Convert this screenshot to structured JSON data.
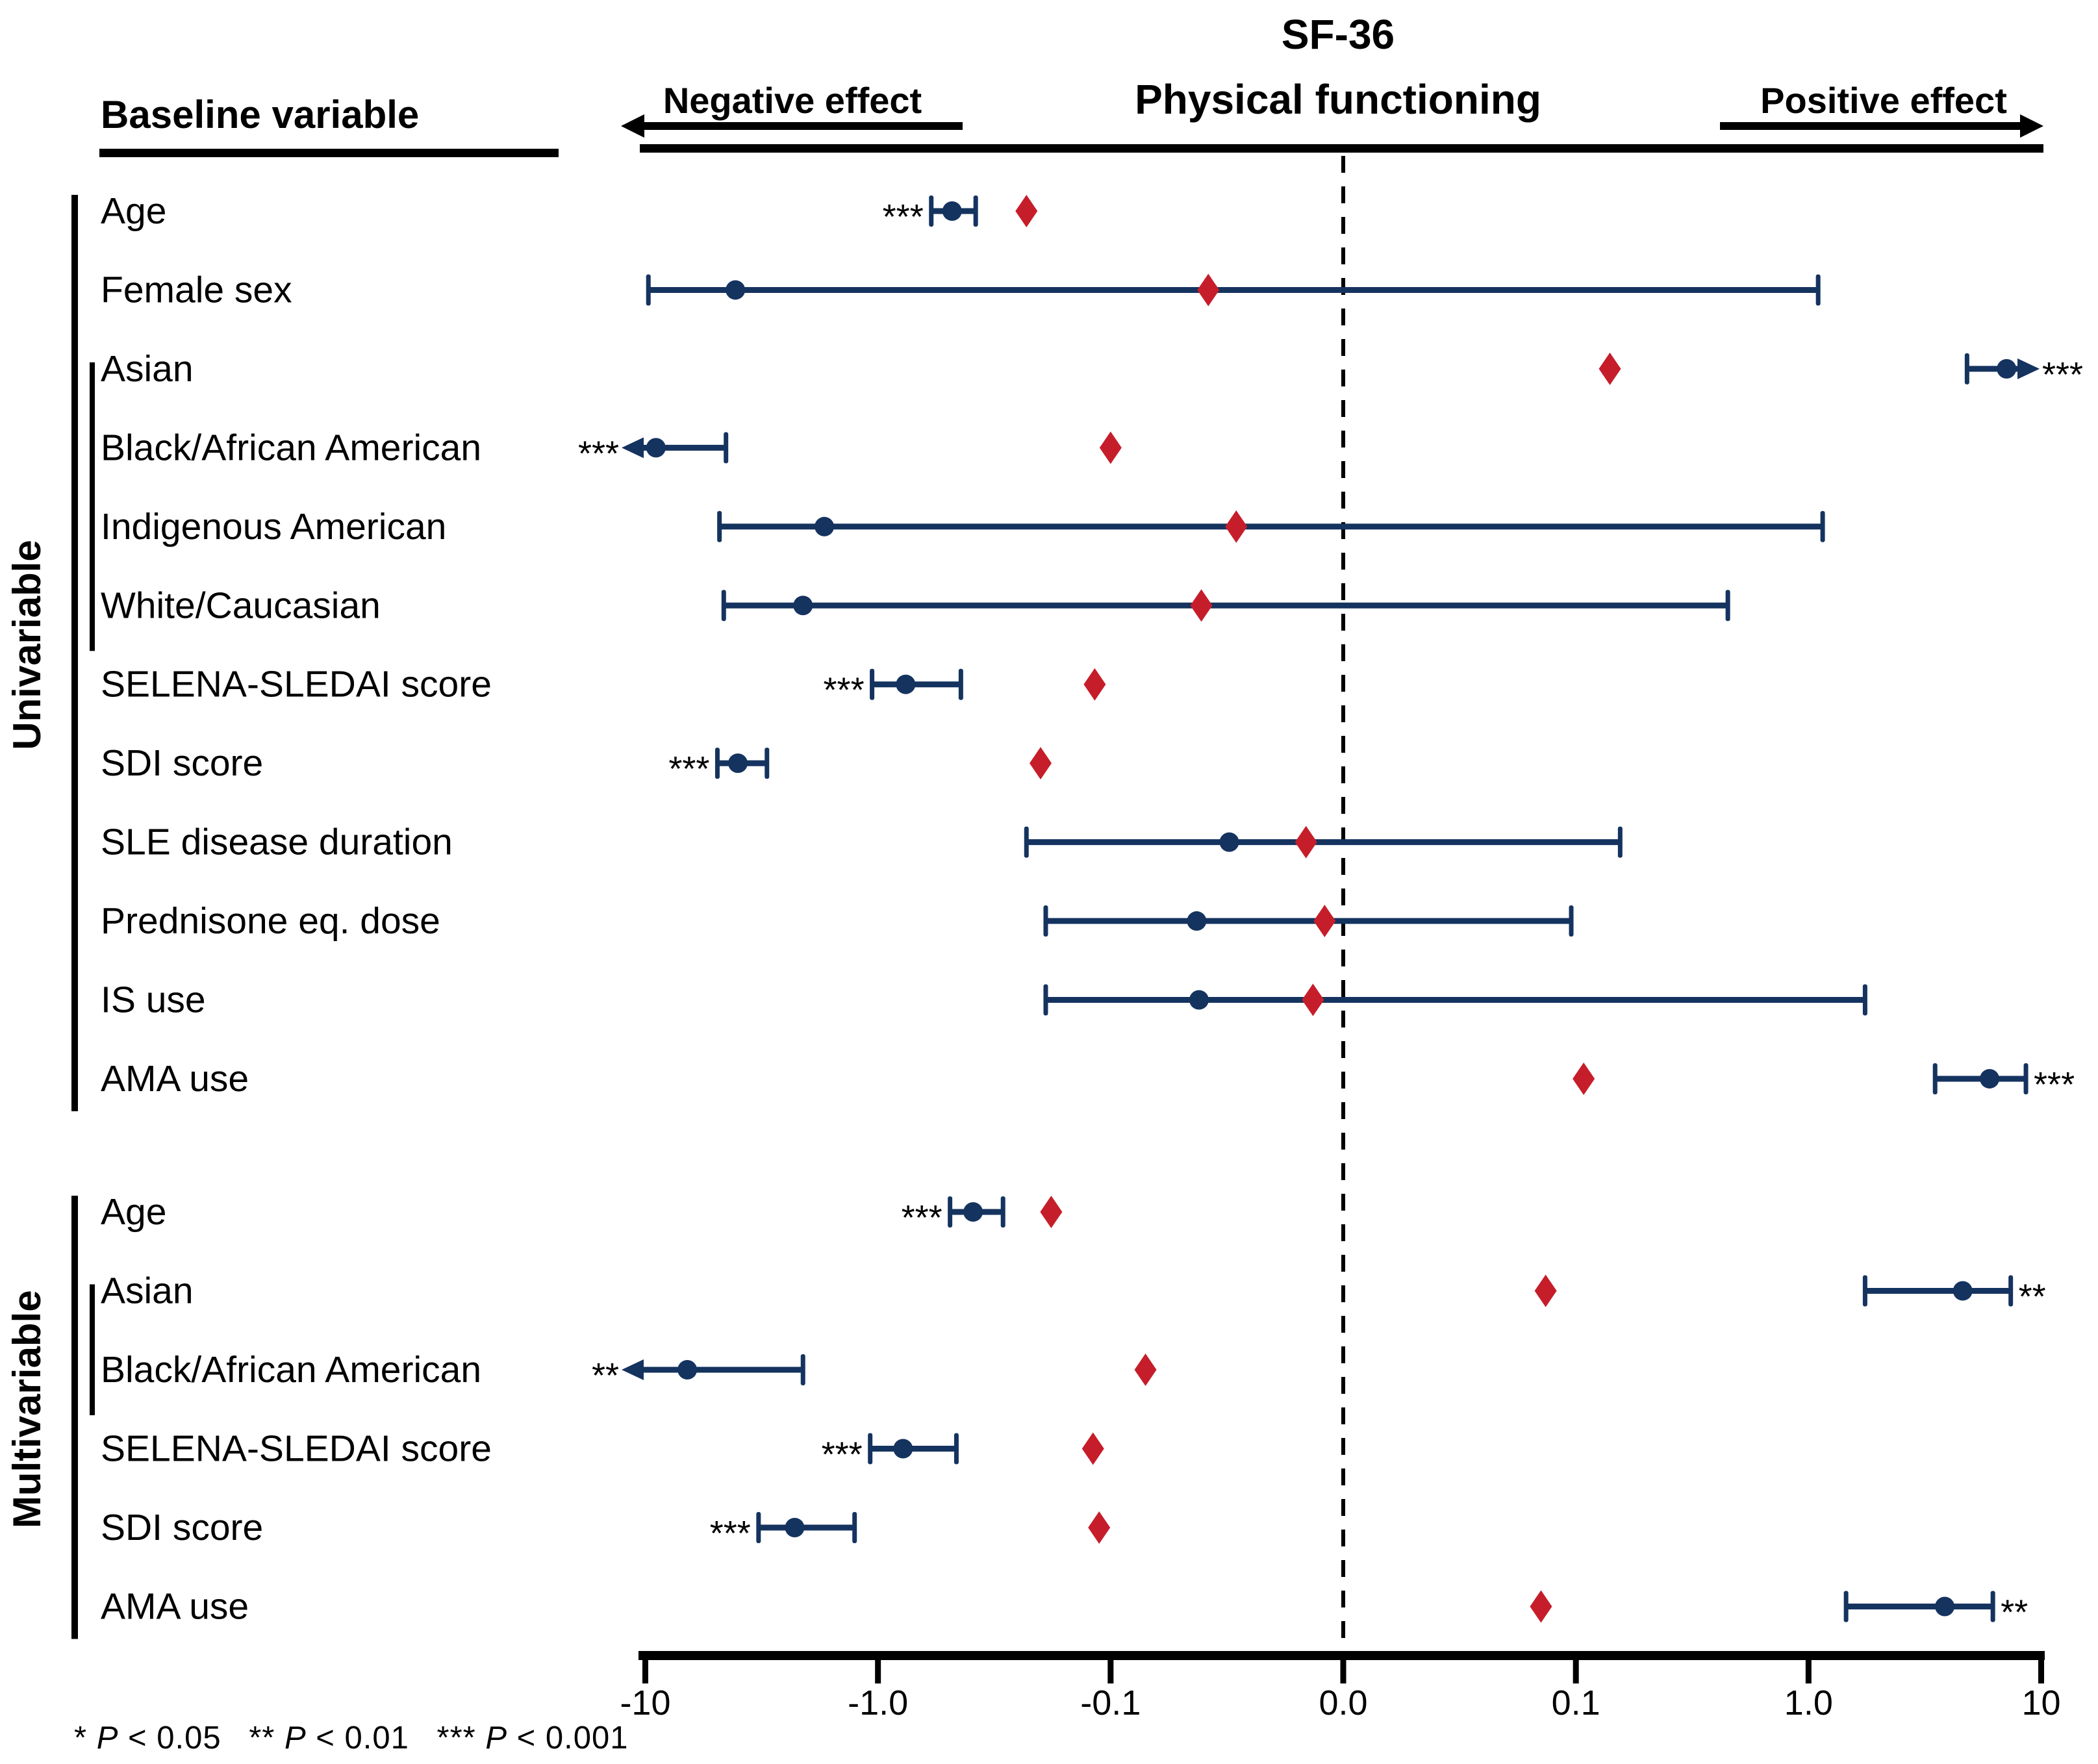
{
  "figure": {
    "title_line1": "SF-36",
    "title_line2": "Physical functioning",
    "column_header": "Baseline variable",
    "negative_label": "Negative effect",
    "positive_label": "Positive effect",
    "footnote": {
      "items": [
        {
          "sym": "*",
          "p": "P",
          "cmp": " < 0.05"
        },
        {
          "sym": "**",
          "p": "P",
          "cmp": " < 0.01"
        },
        {
          "sym": "***",
          "p": "P",
          "cmp": " < 0.001"
        }
      ]
    }
  },
  "colors": {
    "navy": "#15335F",
    "red": "#C51E2A",
    "black": "#000000"
  },
  "chart_data": {
    "type": "forest",
    "title": "SF-36 Physical functioning",
    "x_axis": {
      "scale": "symmetric log, one decade per segment, linear between -0.1 and 0.1",
      "ticks": [
        "-10",
        "-1.0",
        "-0.1",
        "0.0",
        "0.1",
        "1.0",
        "10"
      ],
      "tick_values": [
        -10,
        -1.0,
        -0.1,
        0.0,
        0.1,
        1.0,
        10
      ],
      "zero_reference_line": 0.0,
      "negative_direction_label": "Negative effect",
      "positive_direction_label": "Positive effect"
    },
    "marker_legend": {
      "dot": "point estimate with 95% CI (navy)",
      "diamond": "effect size (red)"
    },
    "sections": [
      {
        "name": "Univariable",
        "sub_bracket_row_labels": [
          "Asian",
          "Black/African American",
          "Indigenous American",
          "White/Caucasian"
        ],
        "rows": [
          {
            "label": "Age",
            "estimate": -0.48,
            "ci_low": -0.59,
            "ci_high": -0.38,
            "low_arrow": false,
            "high_arrow": false,
            "diamond": -0.23,
            "sig": "***",
            "sig_side": "left"
          },
          {
            "label": "Female sex",
            "estimate": -4.1,
            "ci_low": -9.7,
            "ci_high": 1.1,
            "low_arrow": false,
            "high_arrow": false,
            "diamond": -0.058,
            "sig": "",
            "sig_side": null
          },
          {
            "label": "Asian",
            "estimate": 7.1,
            "ci_low": 4.8,
            "ci_high": 10,
            "low_arrow": false,
            "high_arrow": true,
            "diamond": 0.14,
            "sig": "***",
            "sig_side": "right"
          },
          {
            "label": "Black/African American",
            "estimate": -9.0,
            "ci_low": -10,
            "ci_high": -4.5,
            "low_arrow": true,
            "high_arrow": false,
            "diamond": -0.1,
            "sig": "***",
            "sig_side": "left"
          },
          {
            "label": "Indigenous American",
            "estimate": -1.7,
            "ci_low": -4.8,
            "ci_high": 1.15,
            "low_arrow": false,
            "high_arrow": false,
            "diamond": -0.046,
            "sig": "",
            "sig_side": null
          },
          {
            "label": "White/Caucasian",
            "estimate": -2.1,
            "ci_low": -4.6,
            "ci_high": 0.45,
            "low_arrow": false,
            "high_arrow": false,
            "diamond": -0.061,
            "sig": "",
            "sig_side": null
          },
          {
            "label": "SELENA-SLEDAI score",
            "estimate": -0.76,
            "ci_low": -1.06,
            "ci_high": -0.44,
            "low_arrow": false,
            "high_arrow": false,
            "diamond": -0.117,
            "sig": "***",
            "sig_side": "left"
          },
          {
            "label": "SDI score",
            "estimate": -4.0,
            "ci_low": -4.9,
            "ci_high": -3.0,
            "low_arrow": false,
            "high_arrow": false,
            "diamond": -0.2,
            "sig": "***",
            "sig_side": "left"
          },
          {
            "label": "SLE disease duration",
            "estimate": -0.049,
            "ci_low": -0.23,
            "ci_high": 0.155,
            "low_arrow": false,
            "high_arrow": false,
            "diamond": -0.016,
            "sig": "",
            "sig_side": null
          },
          {
            "label": "Prednisone eq. dose",
            "estimate": -0.063,
            "ci_low": -0.19,
            "ci_high": 0.098,
            "low_arrow": false,
            "high_arrow": false,
            "diamond": -0.008,
            "sig": "",
            "sig_side": null
          },
          {
            "label": "IS use",
            "estimate": -0.062,
            "ci_low": -0.19,
            "ci_high": 1.75,
            "low_arrow": false,
            "high_arrow": false,
            "diamond": -0.013,
            "sig": "",
            "sig_side": null
          },
          {
            "label": "AMA use",
            "estimate": 6.0,
            "ci_low": 3.5,
            "ci_high": 8.6,
            "low_arrow": false,
            "high_arrow": false,
            "diamond": 0.108,
            "sig": "***",
            "sig_side": "right"
          }
        ]
      },
      {
        "name": "Multivariable",
        "sub_bracket_row_labels": [
          "Asian",
          "Black/African American"
        ],
        "rows": [
          {
            "label": "Age",
            "estimate": -0.39,
            "ci_low": -0.49,
            "ci_high": -0.29,
            "low_arrow": false,
            "high_arrow": false,
            "diamond": -0.18,
            "sig": "***",
            "sig_side": "left"
          },
          {
            "label": "Asian",
            "estimate": 4.6,
            "ci_low": 1.75,
            "ci_high": 7.4,
            "low_arrow": false,
            "high_arrow": false,
            "diamond": 0.087,
            "sig": "**",
            "sig_side": "right"
          },
          {
            "label": "Black/African American",
            "estimate": -6.6,
            "ci_low": -10,
            "ci_high": -2.1,
            "low_arrow": true,
            "high_arrow": false,
            "diamond": -0.085,
            "sig": "**",
            "sig_side": "left"
          },
          {
            "label": "SELENA-SLEDAI score",
            "estimate": -0.78,
            "ci_low": -1.08,
            "ci_high": -0.46,
            "low_arrow": false,
            "high_arrow": false,
            "diamond": -0.119,
            "sig": "***",
            "sig_side": "left"
          },
          {
            "label": "SDI score",
            "estimate": -2.28,
            "ci_low": -3.26,
            "ci_high": -1.26,
            "low_arrow": false,
            "high_arrow": false,
            "diamond": -0.112,
            "sig": "***",
            "sig_side": "left"
          },
          {
            "label": "AMA use",
            "estimate": 3.85,
            "ci_low": 1.45,
            "ci_high": 6.2,
            "low_arrow": false,
            "high_arrow": false,
            "diamond": 0.085,
            "sig": "**",
            "sig_side": "right"
          }
        ]
      }
    ]
  }
}
